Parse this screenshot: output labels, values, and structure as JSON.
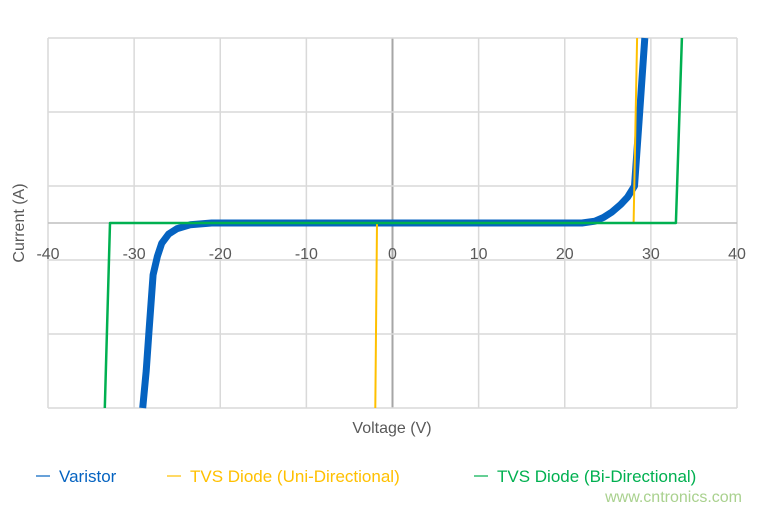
{
  "chart_data": {
    "type": "line",
    "title": "",
    "xlabel": "Voltage (V)",
    "ylabel": "Current (A)",
    "xlim": [
      -40,
      40
    ],
    "ylim": [
      -5,
      5
    ],
    "x_ticks": [
      -40,
      -30,
      -20,
      -10,
      0,
      10,
      20,
      30,
      40
    ],
    "x_tick_labels": [
      "-40",
      "-30",
      "-20",
      "-10",
      "0",
      "10",
      "20",
      "30",
      "40"
    ],
    "y_gridlines": [
      -5,
      -3,
      -1,
      1,
      3,
      5
    ],
    "y_tick_labels_shown": false,
    "grid": true,
    "legend_position": "bottom",
    "series": [
      {
        "name": "Varistor",
        "color": "#0563c1",
        "x": [
          -29.0,
          -28.6,
          -28.3,
          -27.8,
          -27.3,
          -26.8,
          -26.0,
          -25.0,
          -23.5,
          -21.0,
          0,
          22.0,
          23.5,
          24.5,
          25.5,
          26.5,
          27.3,
          28.1,
          28.7,
          29.3
        ],
        "y": [
          -5,
          -4,
          -3,
          -1.4,
          -0.9,
          -0.55,
          -0.3,
          -0.15,
          -0.05,
          0,
          0,
          0,
          0.05,
          0.15,
          0.3,
          0.5,
          0.7,
          1.0,
          3.0,
          5.0
        ]
      },
      {
        "name": "TVS Diode (Uni-Directional)",
        "color": "#ffc000",
        "x": [
          -2.0,
          -1.8,
          28.0,
          28.4
        ],
        "y": [
          -5,
          0,
          0,
          5
        ]
      },
      {
        "name": "TVS Diode (Bi-Directional)",
        "color": "#00b050",
        "x": [
          -33.4,
          -32.8,
          32.9,
          33.6
        ],
        "y": [
          -5,
          0,
          0,
          5
        ]
      }
    ]
  },
  "watermark": "www.cntronics.com"
}
